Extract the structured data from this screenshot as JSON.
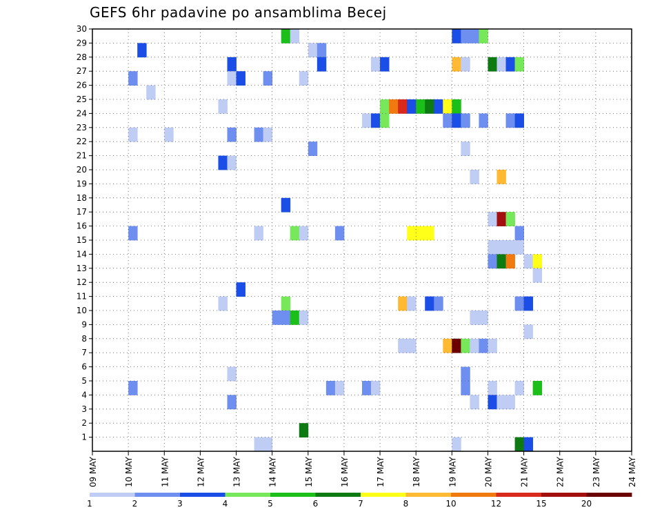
{
  "chart_data": {
    "type": "heatmap",
    "title": "GEFS 6hr padavine po ansamblima Becej",
    "xlabel": "",
    "ylabel": "",
    "x_ticks": [
      "09 MAY",
      "10 MAY",
      "11 MAY",
      "12 MAY",
      "13 MAY",
      "14 MAY",
      "15 MAY",
      "16 MAY",
      "17 MAY",
      "18 MAY",
      "19 MAY",
      "20 MAY",
      "21 MAY",
      "22 MAY",
      "23 MAY",
      "24 MAY"
    ],
    "y_ticks": [
      "1",
      "2",
      "3",
      "4",
      "5",
      "6",
      "7",
      "8",
      "9",
      "10",
      "11",
      "12",
      "13",
      "14",
      "15",
      "16",
      "17",
      "18",
      "19",
      "20",
      "21",
      "22",
      "23",
      "24",
      "25",
      "26",
      "27",
      "28",
      "29",
      "30"
    ],
    "x_unit": "6-hour step from 09 MAY 00Z",
    "ylim": [
      0,
      30
    ],
    "grid": true,
    "colorbar": {
      "labels": [
        "1",
        "2",
        "3",
        "4",
        "5",
        "6",
        "7",
        "8",
        "10",
        "12",
        "15",
        "20"
      ],
      "colors": [
        "#bfcdf5",
        "#6e8ff0",
        "#1a4ee6",
        "#77e85a",
        "#1cbf1a",
        "#0e7a12",
        "#ffff1a",
        "#ffb933",
        "#f07a10",
        "#d9281c",
        "#a30e0e",
        "#6b0000"
      ]
    },
    "cells": [
      {
        "x": 21,
        "y": 30,
        "c": 4
      },
      {
        "x": 22,
        "y": 30,
        "c": 0
      },
      {
        "x": 40,
        "y": 30,
        "c": 2
      },
      {
        "x": 41,
        "y": 30,
        "c": 1
      },
      {
        "x": 42,
        "y": 30,
        "c": 1
      },
      {
        "x": 43,
        "y": 30,
        "c": 3
      },
      {
        "x": 5,
        "y": 29,
        "c": 2
      },
      {
        "x": 24,
        "y": 29,
        "c": 0
      },
      {
        "x": 25,
        "y": 29,
        "c": 1
      },
      {
        "x": 15,
        "y": 28,
        "c": 2
      },
      {
        "x": 25,
        "y": 28,
        "c": 2
      },
      {
        "x": 31,
        "y": 28,
        "c": 0
      },
      {
        "x": 32,
        "y": 28,
        "c": 2
      },
      {
        "x": 40,
        "y": 28,
        "c": 7
      },
      {
        "x": 41,
        "y": 28,
        "c": 0
      },
      {
        "x": 44,
        "y": 28,
        "c": 5
      },
      {
        "x": 45,
        "y": 28,
        "c": 0
      },
      {
        "x": 46,
        "y": 28,
        "c": 2
      },
      {
        "x": 47,
        "y": 28,
        "c": 3
      },
      {
        "x": 4,
        "y": 27,
        "c": 1
      },
      {
        "x": 15,
        "y": 27,
        "c": 0
      },
      {
        "x": 16,
        "y": 27,
        "c": 2
      },
      {
        "x": 19,
        "y": 27,
        "c": 1
      },
      {
        "x": 23,
        "y": 27,
        "c": 0
      },
      {
        "x": 6,
        "y": 26,
        "c": 0
      },
      {
        "x": 14,
        "y": 25,
        "c": 0
      },
      {
        "x": 32,
        "y": 25,
        "c": 3
      },
      {
        "x": 33,
        "y": 25,
        "c": 8
      },
      {
        "x": 34,
        "y": 25,
        "c": 9
      },
      {
        "x": 35,
        "y": 25,
        "c": 2
      },
      {
        "x": 36,
        "y": 25,
        "c": 4
      },
      {
        "x": 37,
        "y": 25,
        "c": 5
      },
      {
        "x": 38,
        "y": 25,
        "c": 2
      },
      {
        "x": 39,
        "y": 25,
        "c": 6
      },
      {
        "x": 40,
        "y": 25,
        "c": 4
      },
      {
        "x": 30,
        "y": 24,
        "c": 0
      },
      {
        "x": 31,
        "y": 24,
        "c": 2
      },
      {
        "x": 32,
        "y": 24,
        "c": 3
      },
      {
        "x": 39,
        "y": 24,
        "c": 1
      },
      {
        "x": 40,
        "y": 24,
        "c": 2
      },
      {
        "x": 41,
        "y": 24,
        "c": 1
      },
      {
        "x": 43,
        "y": 24,
        "c": 1
      },
      {
        "x": 46,
        "y": 24,
        "c": 1
      },
      {
        "x": 47,
        "y": 24,
        "c": 2
      },
      {
        "x": 4,
        "y": 23,
        "c": 0
      },
      {
        "x": 8,
        "y": 23,
        "c": 0
      },
      {
        "x": 15,
        "y": 23,
        "c": 1
      },
      {
        "x": 18,
        "y": 23,
        "c": 1
      },
      {
        "x": 19,
        "y": 23,
        "c": 0
      },
      {
        "x": 24,
        "y": 22,
        "c": 1
      },
      {
        "x": 41,
        "y": 22,
        "c": 0
      },
      {
        "x": 14,
        "y": 21,
        "c": 2
      },
      {
        "x": 15,
        "y": 21,
        "c": 0
      },
      {
        "x": 42,
        "y": 20,
        "c": 0
      },
      {
        "x": 45,
        "y": 20,
        "c": 7
      },
      {
        "x": 21,
        "y": 18,
        "c": 2
      },
      {
        "x": 44,
        "y": 17,
        "c": 0
      },
      {
        "x": 45,
        "y": 17,
        "c": 10
      },
      {
        "x": 46,
        "y": 17,
        "c": 3
      },
      {
        "x": 4,
        "y": 16,
        "c": 1
      },
      {
        "x": 18,
        "y": 16,
        "c": 0
      },
      {
        "x": 22,
        "y": 16,
        "c": 3
      },
      {
        "x": 23,
        "y": 16,
        "c": 0
      },
      {
        "x": 27,
        "y": 16,
        "c": 1
      },
      {
        "x": 35,
        "y": 16,
        "c": 6
      },
      {
        "x": 36,
        "y": 16,
        "c": 6
      },
      {
        "x": 37,
        "y": 16,
        "c": 6
      },
      {
        "x": 47,
        "y": 16,
        "c": 1
      },
      {
        "x": 44,
        "y": 15,
        "c": 0
      },
      {
        "x": 45,
        "y": 15,
        "c": 0
      },
      {
        "x": 46,
        "y": 15,
        "c": 0
      },
      {
        "x": 47,
        "y": 15,
        "c": 0
      },
      {
        "x": 44,
        "y": 14,
        "c": 1
      },
      {
        "x": 45,
        "y": 14,
        "c": 5
      },
      {
        "x": 46,
        "y": 14,
        "c": 8
      },
      {
        "x": 48,
        "y": 14,
        "c": 0
      },
      {
        "x": 49,
        "y": 14,
        "c": 6
      },
      {
        "x": 49,
        "y": 13,
        "c": 0
      },
      {
        "x": 16,
        "y": 12,
        "c": 2
      },
      {
        "x": 14,
        "y": 11,
        "c": 0
      },
      {
        "x": 21,
        "y": 11,
        "c": 3
      },
      {
        "x": 34,
        "y": 11,
        "c": 7
      },
      {
        "x": 35,
        "y": 11,
        "c": 0
      },
      {
        "x": 37,
        "y": 11,
        "c": 2
      },
      {
        "x": 38,
        "y": 11,
        "c": 1
      },
      {
        "x": 47,
        "y": 11,
        "c": 1
      },
      {
        "x": 48,
        "y": 11,
        "c": 2
      },
      {
        "x": 20,
        "y": 10,
        "c": 1
      },
      {
        "x": 21,
        "y": 10,
        "c": 1
      },
      {
        "x": 22,
        "y": 10,
        "c": 4
      },
      {
        "x": 23,
        "y": 10,
        "c": 0
      },
      {
        "x": 42,
        "y": 10,
        "c": 0
      },
      {
        "x": 43,
        "y": 10,
        "c": 0
      },
      {
        "x": 48,
        "y": 9,
        "c": 0
      },
      {
        "x": 34,
        "y": 8,
        "c": 0
      },
      {
        "x": 35,
        "y": 8,
        "c": 0
      },
      {
        "x": 39,
        "y": 8,
        "c": 7
      },
      {
        "x": 40,
        "y": 8,
        "c": 11
      },
      {
        "x": 41,
        "y": 8,
        "c": 3
      },
      {
        "x": 42,
        "y": 8,
        "c": 0
      },
      {
        "x": 43,
        "y": 8,
        "c": 1
      },
      {
        "x": 44,
        "y": 8,
        "c": 0
      },
      {
        "x": 15,
        "y": 6,
        "c": 0
      },
      {
        "x": 41,
        "y": 6,
        "c": 1
      },
      {
        "x": 4,
        "y": 5,
        "c": 1
      },
      {
        "x": 26,
        "y": 5,
        "c": 1
      },
      {
        "x": 27,
        "y": 5,
        "c": 0
      },
      {
        "x": 30,
        "y": 5,
        "c": 1
      },
      {
        "x": 31,
        "y": 5,
        "c": 0
      },
      {
        "x": 41,
        "y": 5,
        "c": 1
      },
      {
        "x": 44,
        "y": 5,
        "c": 0
      },
      {
        "x": 47,
        "y": 5,
        "c": 0
      },
      {
        "x": 49,
        "y": 5,
        "c": 4
      },
      {
        "x": 15,
        "y": 4,
        "c": 1
      },
      {
        "x": 42,
        "y": 4,
        "c": 0
      },
      {
        "x": 44,
        "y": 4,
        "c": 2
      },
      {
        "x": 45,
        "y": 4,
        "c": 0
      },
      {
        "x": 46,
        "y": 4,
        "c": 0
      },
      {
        "x": 23,
        "y": 2,
        "c": 5
      },
      {
        "x": 18,
        "y": 1,
        "c": 0
      },
      {
        "x": 19,
        "y": 1,
        "c": 0
      },
      {
        "x": 40,
        "y": 1,
        "c": 0
      },
      {
        "x": 47,
        "y": 1,
        "c": 5
      },
      {
        "x": 48,
        "y": 1,
        "c": 2
      }
    ]
  }
}
